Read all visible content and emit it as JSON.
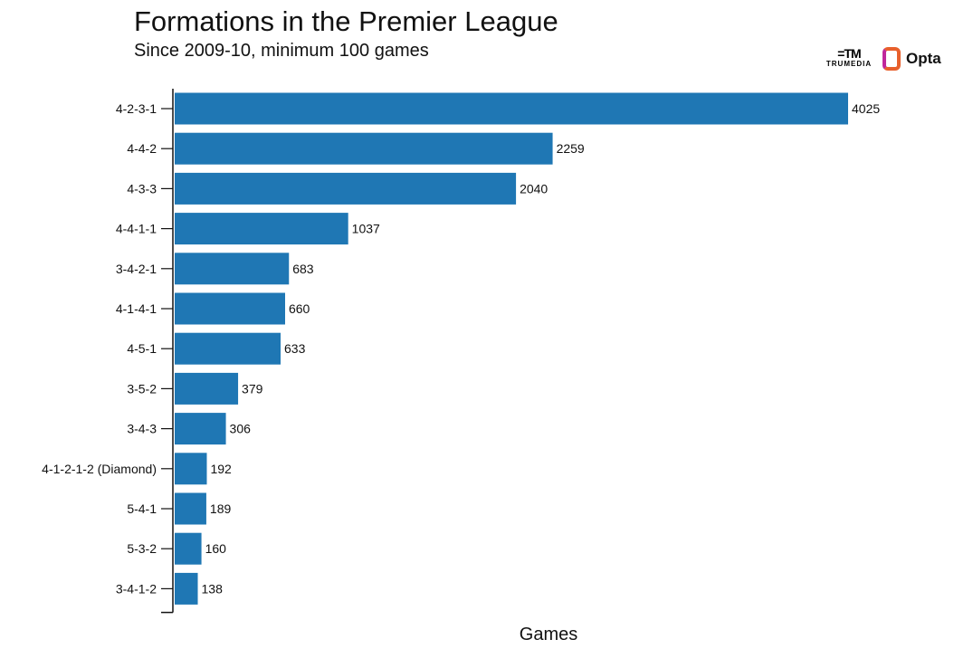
{
  "chart_data": {
    "type": "bar",
    "orientation": "horizontal",
    "title": "Formations in the Premier League",
    "subtitle": "Since 2009-10, minimum 100 games",
    "xlabel": "Games",
    "ylabel": "",
    "categories": [
      "4-2-3-1",
      "4-4-2",
      "4-3-3",
      "4-4-1-1",
      "3-4-2-1",
      "4-1-4-1",
      "4-5-1",
      "3-5-2",
      "3-4-3",
      "4-1-2-1-2 (Diamond)",
      "5-4-1",
      "5-3-2",
      "3-4-1-2"
    ],
    "values": [
      4025,
      2259,
      2040,
      1037,
      683,
      660,
      633,
      379,
      306,
      192,
      189,
      160,
      138
    ],
    "xlim": [
      0,
      4025
    ],
    "grid": false,
    "bar_color": "#1f77b4"
  },
  "logos": {
    "trumedia": "TRUMEDIA",
    "opta": "Opta"
  }
}
